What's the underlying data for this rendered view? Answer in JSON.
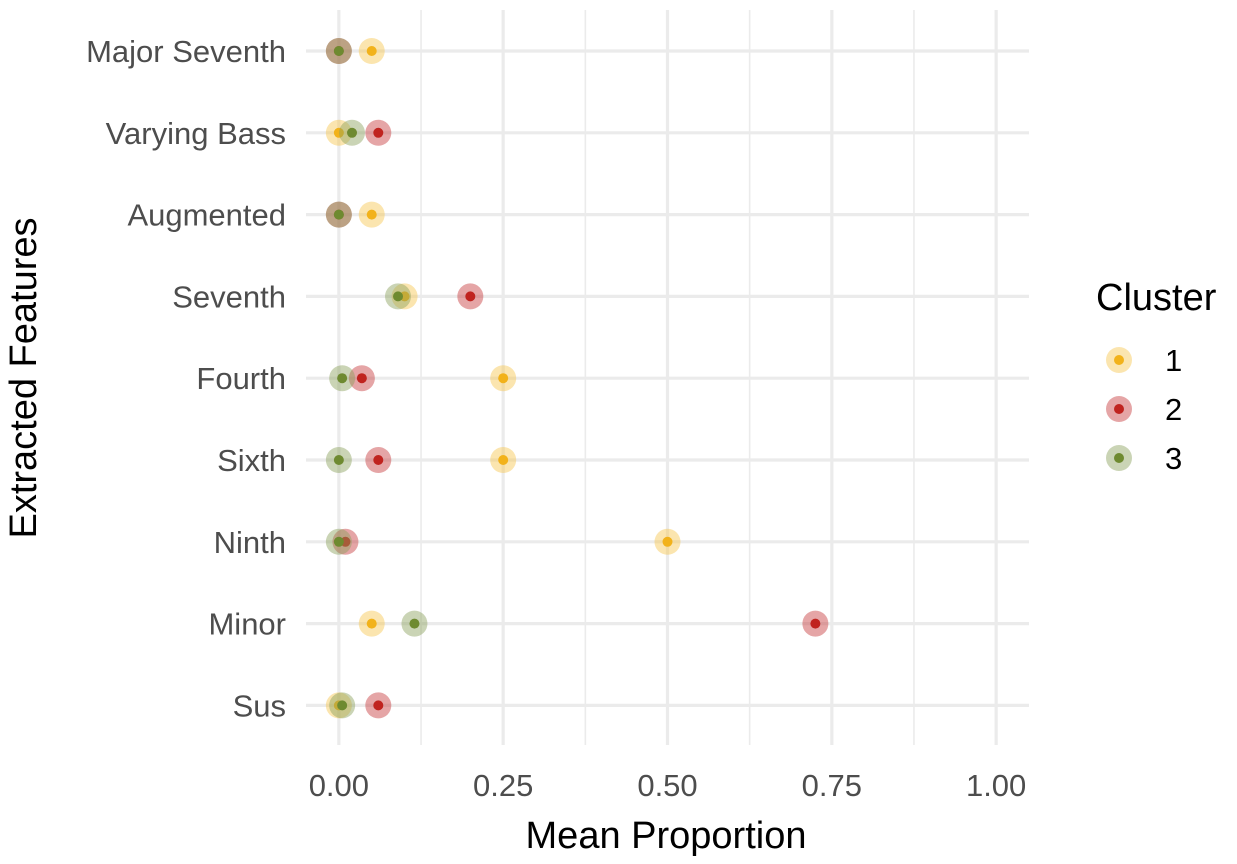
{
  "chart_data": {
    "type": "scatter",
    "title": "",
    "xlabel": "Mean Proportion",
    "ylabel": "Extracted Features",
    "xlim": [
      -0.05,
      1.05
    ],
    "x_ticks": [
      "0.00",
      "0.25",
      "0.50",
      "0.75",
      "1.00"
    ],
    "x_tick_values": [
      0,
      0.25,
      0.5,
      0.75,
      1.0
    ],
    "categories": [
      "Major Seventh",
      "Varying Bass",
      "Augmented",
      "Seventh",
      "Fourth",
      "Sixth",
      "Ninth",
      "Minor",
      "Sus"
    ],
    "grid": true,
    "legend": {
      "title": "Cluster",
      "placement": "right"
    },
    "series": [
      {
        "name": "1",
        "color_outer": "#f6c54d",
        "color_inner": "#f2b21a",
        "values": [
          0.05,
          0.0,
          0.05,
          0.1,
          0.25,
          0.25,
          0.5,
          0.05,
          0.0
        ]
      },
      {
        "name": "2",
        "color_outer": "#c5383a",
        "color_inner": "#c0231f",
        "values": [
          0.0,
          0.06,
          0.0,
          0.2,
          0.035,
          0.06,
          0.01,
          0.725,
          0.06
        ]
      },
      {
        "name": "3",
        "color_outer": "#8aa05a",
        "color_inner": "#6e8a30",
        "values": [
          0.0,
          0.02,
          0.0,
          0.09,
          0.005,
          0.0,
          0.0,
          0.115,
          0.005
        ]
      }
    ]
  }
}
